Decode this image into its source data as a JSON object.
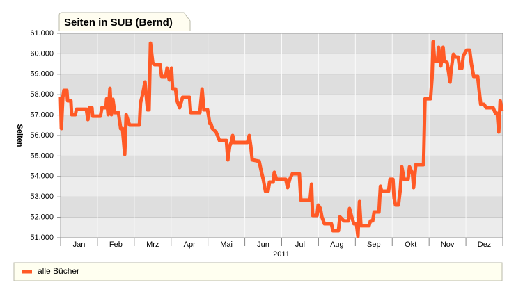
{
  "chart_data": {
    "type": "line",
    "title": "Seiten in SUB (Bernd)",
    "y_label": "Seiten",
    "x_label": "2011",
    "categories": [
      "Jan",
      "Feb",
      "Mrz",
      "Apr",
      "Mai",
      "Jun",
      "Jul",
      "Aug",
      "Sep",
      "Okt",
      "Nov",
      "Dez"
    ],
    "xlim": [
      0,
      12
    ],
    "ylim": [
      51000,
      61000
    ],
    "yticks": [
      {
        "value": 51000,
        "label": "51.000"
      },
      {
        "value": 52000,
        "label": "52.000"
      },
      {
        "value": 53000,
        "label": "53.000"
      },
      {
        "value": 54000,
        "label": "54.000"
      },
      {
        "value": 55000,
        "label": "55.000"
      },
      {
        "value": 56000,
        "label": "56.000"
      },
      {
        "value": 57000,
        "label": "57.000"
      },
      {
        "value": 58000,
        "label": "58.000"
      },
      {
        "value": 59000,
        "label": "59.000"
      },
      {
        "value": 60000,
        "label": "60.000"
      },
      {
        "value": 61000,
        "label": "61.000"
      }
    ],
    "grid": true,
    "x": [
      0,
      0.02,
      0.06,
      0.09,
      0.17,
      0.19,
      0.28,
      0.3,
      0.4,
      0.43,
      0.7,
      0.74,
      0.78,
      0.85,
      0.87,
      1.08,
      1.12,
      1.23,
      1.25,
      1.29,
      1.34,
      1.38,
      1.42,
      1.47,
      1.57,
      1.63,
      1.68,
      1.74,
      1.78,
      1.87,
      2.14,
      2.17,
      2.23,
      2.29,
      2.36,
      2.4,
      2.44,
      2.5,
      2.55,
      2.7,
      2.74,
      2.85,
      2.89,
      2.95,
      3.01,
      3.04,
      3.12,
      3.16,
      3.23,
      3.31,
      3.5,
      3.53,
      3.78,
      3.84,
      3.89,
      3.99,
      4.05,
      4.08,
      4.12,
      4.22,
      4.31,
      4.5,
      4.54,
      4.59,
      4.63,
      4.67,
      4.71,
      5.07,
      5.12,
      5.16,
      5.2,
      5.39,
      5.44,
      5.5,
      5.56,
      5.63,
      5.67,
      5.77,
      5.8,
      5.86,
      6.11,
      6.16,
      6.22,
      6.29,
      6.48,
      6.52,
      6.77,
      6.81,
      6.84,
      6.96,
      6.99,
      7.05,
      7.09,
      7.16,
      7.35,
      7.39,
      7.54,
      7.58,
      7.69,
      7.81,
      7.84,
      7.9,
      7.96,
      8.03,
      8.07,
      8.11,
      8.15,
      8.37,
      8.41,
      8.47,
      8.51,
      8.64,
      8.68,
      8.71,
      8.9,
      8.94,
      9.02,
      9.05,
      9.09,
      9.17,
      9.22,
      9.26,
      9.32,
      9.43,
      9.47,
      9.55,
      9.58,
      9.64,
      9.85,
      9.89,
      10.04,
      10.08,
      10.11,
      10.15,
      10.23,
      10.26,
      10.32,
      10.38,
      10.41,
      10.49,
      10.57,
      10.6,
      10.66,
      10.72,
      10.79,
      10.83,
      10.89,
      10.93,
      11.02,
      11.1,
      11.15,
      11.21,
      11.32,
      11.36,
      11.4,
      11.49,
      11.55,
      11.74,
      11.8,
      11.85,
      11.89,
      11.93,
      11.98
    ],
    "series": [
      {
        "name": "alle Bücher",
        "color": "#ff5a26",
        "values": [
          57870,
          56340,
          57870,
          58210,
          58210,
          57700,
          57700,
          57020,
          57020,
          57290,
          57290,
          56780,
          57360,
          57360,
          56950,
          56950,
          57360,
          57360,
          57800,
          57020,
          58310,
          57020,
          57770,
          57120,
          57120,
          56340,
          56340,
          55080,
          57020,
          56510,
          56510,
          57600,
          58040,
          58620,
          57260,
          57260,
          60520,
          59570,
          59470,
          59470,
          58890,
          58890,
          59300,
          58720,
          59300,
          58280,
          58280,
          57700,
          57360,
          57870,
          57870,
          57120,
          57120,
          58280,
          57260,
          57260,
          56580,
          56580,
          56340,
          56170,
          55760,
          55760,
          54810,
          55490,
          55660,
          56000,
          55660,
          55660,
          56000,
          55490,
          54810,
          54740,
          54300,
          53860,
          53280,
          53280,
          53720,
          53720,
          54200,
          53860,
          53860,
          53450,
          53860,
          54130,
          54130,
          52840,
          52840,
          53620,
          52090,
          52090,
          52600,
          52430,
          52020,
          51680,
          51680,
          51340,
          51340,
          52020,
          51820,
          51820,
          52430,
          52020,
          51680,
          51680,
          51070,
          52770,
          51580,
          51580,
          51820,
          51820,
          52260,
          52260,
          53520,
          53280,
          53280,
          53860,
          53860,
          52940,
          52600,
          52600,
          53380,
          54470,
          53860,
          53860,
          54470,
          54130,
          53450,
          54570,
          54570,
          57800,
          57800,
          58820,
          60590,
          59640,
          59640,
          60320,
          59400,
          60320,
          59640,
          59570,
          58620,
          59230,
          59980,
          59840,
          59840,
          59300,
          59300,
          59910,
          60180,
          60180,
          59500,
          58890,
          58890,
          58210,
          57530,
          57530,
          57360,
          57360,
          57090,
          57090,
          56170,
          57700,
          57190
        ]
      }
    ]
  }
}
